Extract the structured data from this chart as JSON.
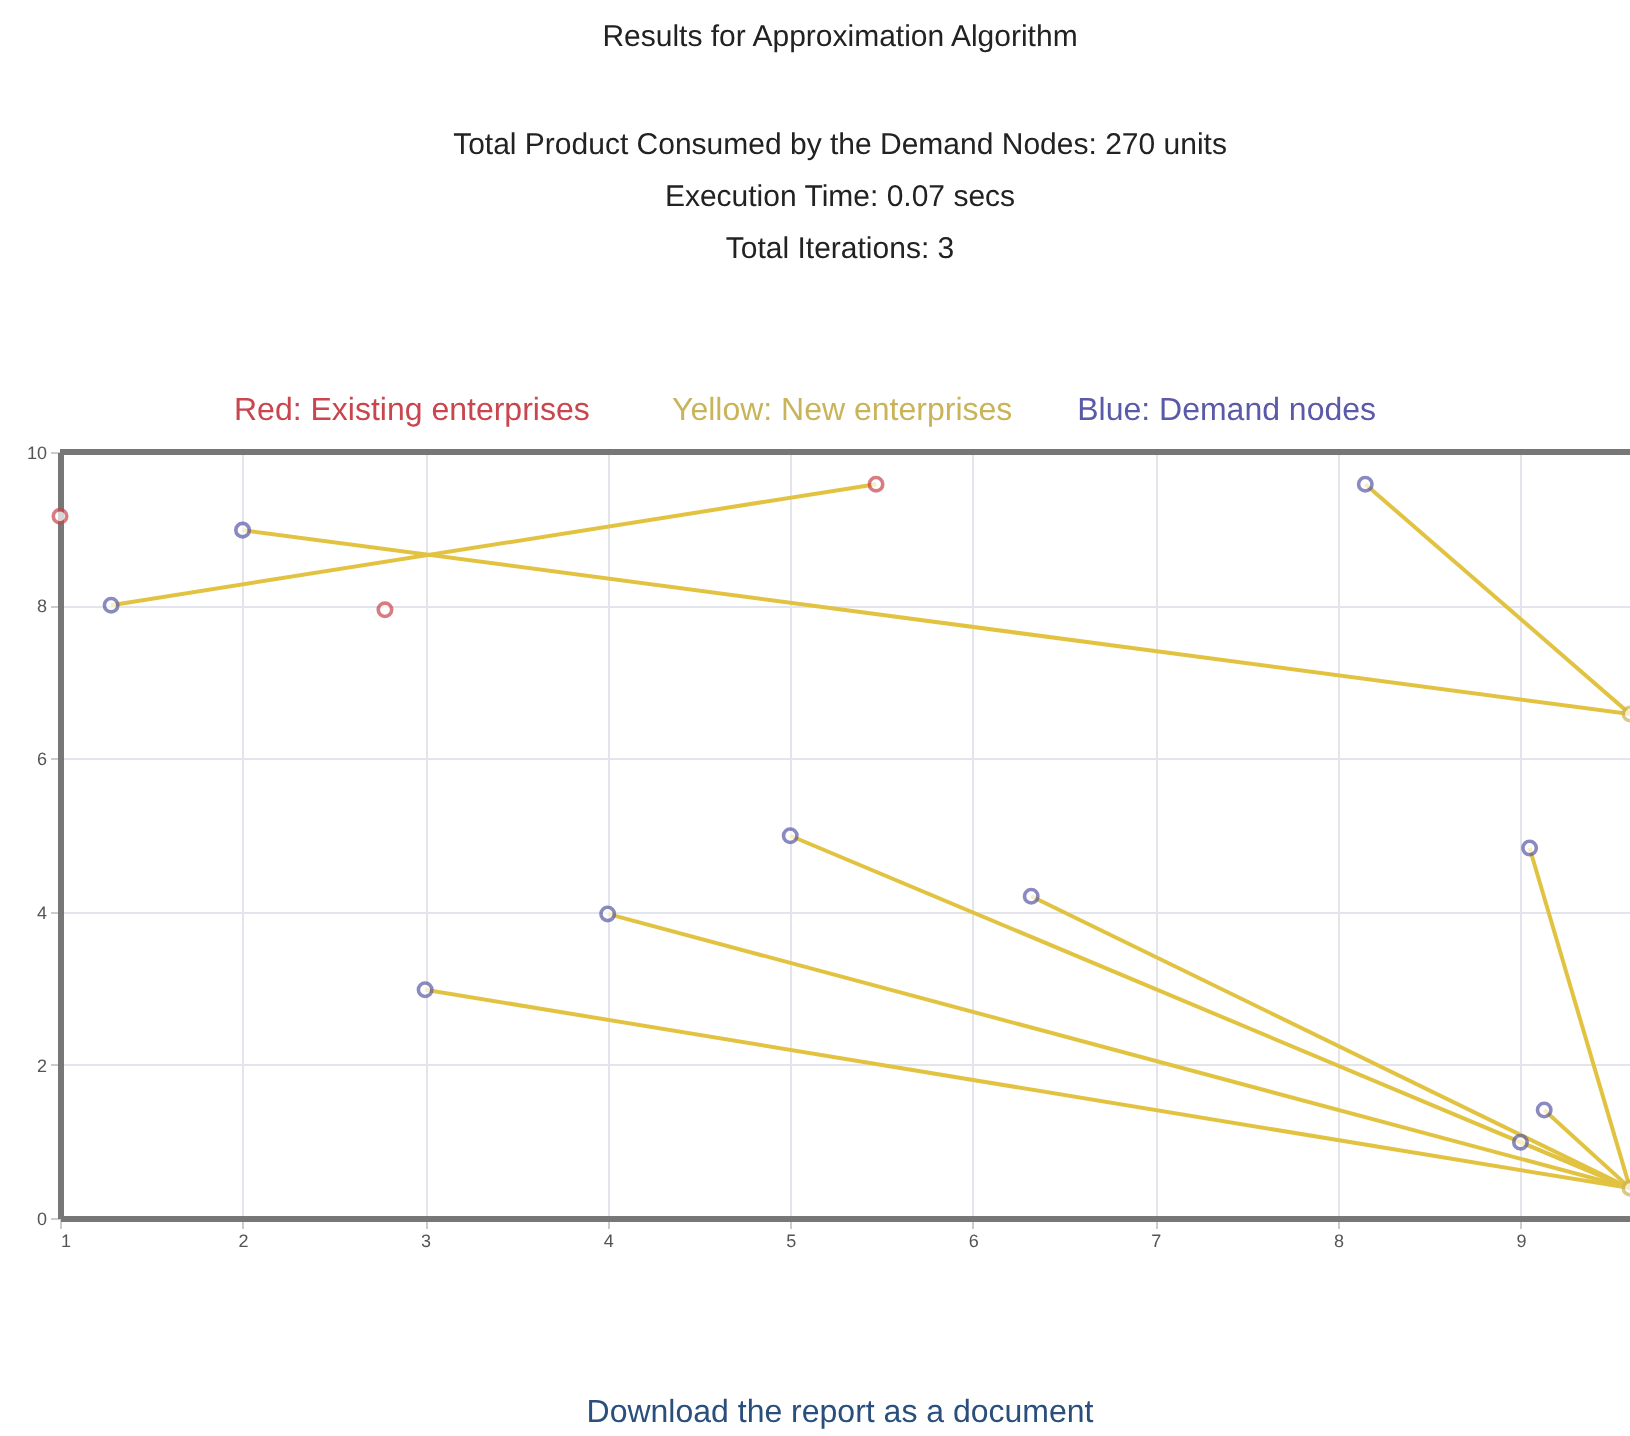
{
  "chart_data": {
    "type": "scatter",
    "title": "Results for Approximation Algorithm",
    "subtitle": "Total Product Consumed by the Demand Nodes: 270 units\nExecution Time: 0.07 secs\nTotal Iterations: 3",
    "annotations": [
      "Download the report as a document"
    ],
    "xlim": [
      1,
      9.6
    ],
    "xticks": [
      1,
      2,
      3,
      4,
      5,
      6,
      7,
      8,
      9
    ],
    "ylim": [
      0,
      10
    ],
    "yticks": [
      0,
      2,
      4,
      6,
      8,
      10
    ],
    "grid": true,
    "legend": "top",
    "marker": "circle",
    "line_style": "solid",
    "series": [
      {
        "type": "line",
        "marker": "none",
        "color": "#e2c341",
        "x": [
          1.28,
          5.47
        ],
        "values": [
          8.0,
          9.58
        ]
      },
      {
        "type": "line",
        "marker": "none",
        "color": "#e2c341",
        "x": [
          2.0,
          9.6
        ],
        "values": [
          8.98,
          6.58
        ]
      },
      {
        "type": "line",
        "marker": "none",
        "color": "#e2c341",
        "x": [
          8.15,
          9.6
        ],
        "values": [
          9.58,
          6.58
        ]
      },
      {
        "type": "line",
        "marker": "none",
        "color": "#e2c341",
        "x": [
          3.0,
          9.6
        ],
        "values": [
          2.98,
          0.39
        ]
      },
      {
        "type": "line",
        "marker": "none",
        "color": "#e2c341",
        "x": [
          4.0,
          9.6
        ],
        "values": [
          3.97,
          0.39
        ]
      },
      {
        "type": "line",
        "marker": "none",
        "color": "#e2c341",
        "x": [
          5.0,
          9.6
        ],
        "values": [
          4.99,
          0.39
        ]
      },
      {
        "type": "line",
        "marker": "none",
        "color": "#e2c341",
        "x": [
          6.32,
          9.6
        ],
        "values": [
          4.2,
          0.39
        ]
      },
      {
        "type": "line",
        "marker": "none",
        "color": "#e2c341",
        "x": [
          9.05,
          9.6
        ],
        "values": [
          4.83,
          0.39
        ]
      },
      {
        "type": "line",
        "marker": "none",
        "color": "#e2c341",
        "x": [
          9.13,
          9.6
        ],
        "values": [
          1.41,
          0.39
        ]
      },
      {
        "type": "line",
        "marker": "none",
        "color": "#e2c341",
        "x": [
          9.0,
          9.6
        ],
        "values": [
          0.99,
          0.39
        ]
      },
      {
        "type": "scatter",
        "name": "Red: Existing enterprises",
        "color": "#c9464e",
        "x": [
          1.0,
          2.78,
          5.47
        ],
        "values": [
          9.16,
          7.94,
          9.58
        ]
      },
      {
        "type": "scatter",
        "name": "Yellow: New enterprises",
        "color": "#c9b45a",
        "x": [
          9.6,
          9.6
        ],
        "values": [
          6.58,
          0.39
        ]
      },
      {
        "type": "scatter",
        "name": "Blue: Demand nodes",
        "color": "#5a5aa8",
        "x": [
          1.28,
          2.0,
          8.15,
          3.0,
          4.0,
          5.0,
          6.32,
          9.05,
          9.13,
          9.0
        ],
        "values": [
          8.0,
          8.98,
          9.58,
          2.98,
          3.97,
          4.99,
          4.2,
          4.83,
          1.41,
          0.99
        ]
      }
    ]
  }
}
